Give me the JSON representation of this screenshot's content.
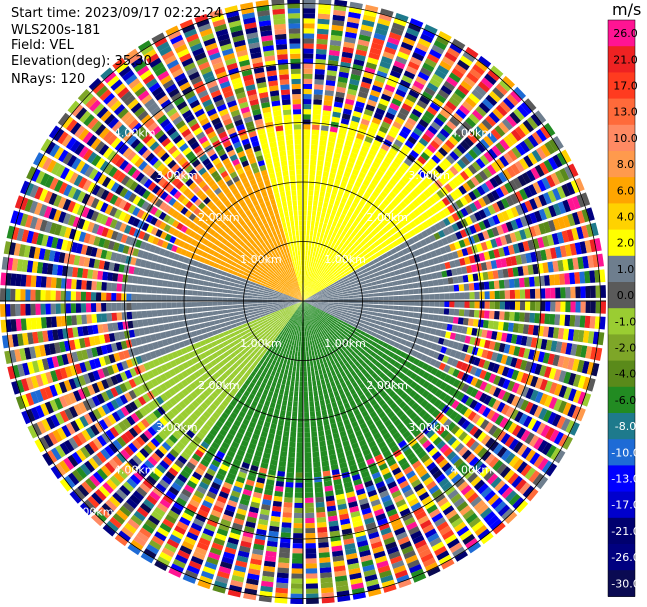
{
  "header": {
    "start_time": "Start time: 2023/09/17 02:22:24",
    "instrument": "WLS200s-181",
    "field": "Field: VEL",
    "elevation": "Elevation(deg): 35.30",
    "nrays": "NRays: 120"
  },
  "chart_data": {
    "type": "heatmap",
    "projection": "polar-ppi",
    "grid": true,
    "range_rings_km": [
      1,
      2,
      3,
      4,
      5
    ],
    "ring_labels": [
      "1.00km",
      "2.00km",
      "3.00km",
      "4.00km",
      "5.00km"
    ],
    "radial_labels": [
      {
        "text": "1.00km",
        "ring": 1,
        "bearing": 315
      },
      {
        "text": "1.00km",
        "ring": 1,
        "bearing": 45
      },
      {
        "text": "1.00km",
        "ring": 1,
        "bearing": 225
      },
      {
        "text": "1.00km",
        "ring": 1,
        "bearing": 135
      },
      {
        "text": "2.00km",
        "ring": 2,
        "bearing": 315
      },
      {
        "text": "2.00km",
        "ring": 2,
        "bearing": 45
      },
      {
        "text": "2.00km",
        "ring": 2,
        "bearing": 225
      },
      {
        "text": "2.00km",
        "ring": 2,
        "bearing": 135
      },
      {
        "text": "3.00km",
        "ring": 3,
        "bearing": 315
      },
      {
        "text": "3.00km",
        "ring": 3,
        "bearing": 45
      },
      {
        "text": "3.00km",
        "ring": 3,
        "bearing": 225
      },
      {
        "text": "3.00km",
        "ring": 3,
        "bearing": 135
      },
      {
        "text": "4.00km",
        "ring": 4,
        "bearing": 315
      },
      {
        "text": "4.00km",
        "ring": 4,
        "bearing": 45
      },
      {
        "text": "4.00km",
        "ring": 4,
        "bearing": 225
      },
      {
        "text": "4.00km",
        "ring": 4,
        "bearing": 135
      },
      {
        "text": "5.00km",
        "ring": 5,
        "bearing": 225
      }
    ],
    "colorbar": {
      "unit": "m/s",
      "ticks": [
        "26.0",
        "21.0",
        "17.0",
        "13.0",
        "10.0",
        "8.0",
        "6.0",
        "4.0",
        "2.0",
        "1.0",
        "0.0",
        "-1.0",
        "-2.0",
        "-4.0",
        "-6.0",
        "-8.0",
        "-10.0",
        "-13.0",
        "-17.0",
        "-21.0",
        "-26.0",
        "-30.0"
      ],
      "colors": [
        "#ff1493",
        "#ee2222",
        "#ff3b1f",
        "#ff6a3a",
        "#ff8a63",
        "#ff9a4d",
        "#ffa500",
        "#ffd200",
        "#ffff00",
        "#6e7e8e",
        "#5a5a5a",
        "#9acd32",
        "#7ea628",
        "#5a8a1a",
        "#228b22",
        "#1e7a8c",
        "#1e6bd6",
        "#0000ff",
        "#0000cd",
        "#00006e",
        "#000080",
        "#0a0a52"
      ]
    },
    "field": "VEL",
    "nrays": 120,
    "elevation_deg": 35.3
  }
}
